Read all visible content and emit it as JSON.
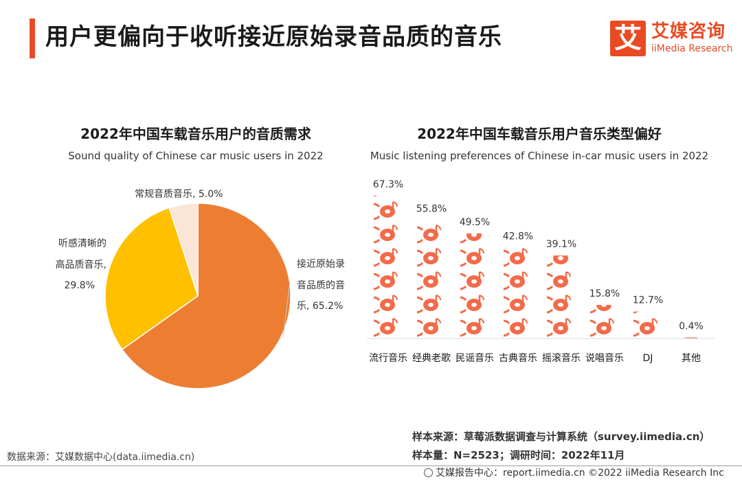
{
  "header": {
    "title": "用户更偏向于收听接近原始录音品质的音乐",
    "logo_mark": "艾",
    "logo_cn": "艾媒咨询",
    "logo_en": "iiMedia Research"
  },
  "chart_data": [
    {
      "type": "pie",
      "title": "2022年中国车载音乐用户的音质需求",
      "subtitle": "Sound quality of Chinese car music users in 2022",
      "slices": [
        {
          "label": "接近原始录音品质的音乐",
          "value": 65.2,
          "color": "#ed7d31"
        },
        {
          "label": "听感清晰的高品质音乐",
          "value": 29.8,
          "color": "#ffc000"
        },
        {
          "label": "常规音质音乐",
          "value": 5.0,
          "color": "#fbe5d6"
        }
      ],
      "labels": {
        "main_line1": "接近原始录",
        "main_line2": "音品质的音",
        "main_line3": "乐, 65.2%",
        "hq_line1": "听感清晰的",
        "hq_line2": "高品质音乐,",
        "hq_line3": "29.8%",
        "reg_line1": "常规音质音乐, 5.0%"
      }
    },
    {
      "type": "bar",
      "title": "2022年中国车载音乐用户音乐类型偏好",
      "subtitle": "Music listening preferences of Chinese in-car music users in 2022",
      "categories": [
        "流行音乐",
        "经典老歌",
        "民谣音乐",
        "古典音乐",
        "摇滚音乐",
        "说唱音乐",
        "DJ",
        "其他"
      ],
      "values": [
        67.3,
        55.8,
        49.5,
        42.8,
        39.1,
        15.8,
        12.7,
        0.4
      ],
      "value_labels": [
        "67.3%",
        "55.8%",
        "49.5%",
        "42.8%",
        "39.1%",
        "15.8%",
        "12.7%",
        "0.4%"
      ],
      "ylim": [
        0,
        67.3
      ],
      "bar_style": "stacked music-disc pictogram",
      "color": "#f26b4a"
    }
  ],
  "footer": {
    "data_source": "数据来源：艾媒数据中心(data.iimedia.cn)",
    "sample_source": "样本来源：草莓派数据调查与计算系统（survey.iimedia.cn）",
    "sample_size": "样本量：N=2523；调研时间：2022年11月",
    "report_center": "艾媒报告中心：report.iimedia.cn  ©2022  iiMedia Research  Inc"
  }
}
